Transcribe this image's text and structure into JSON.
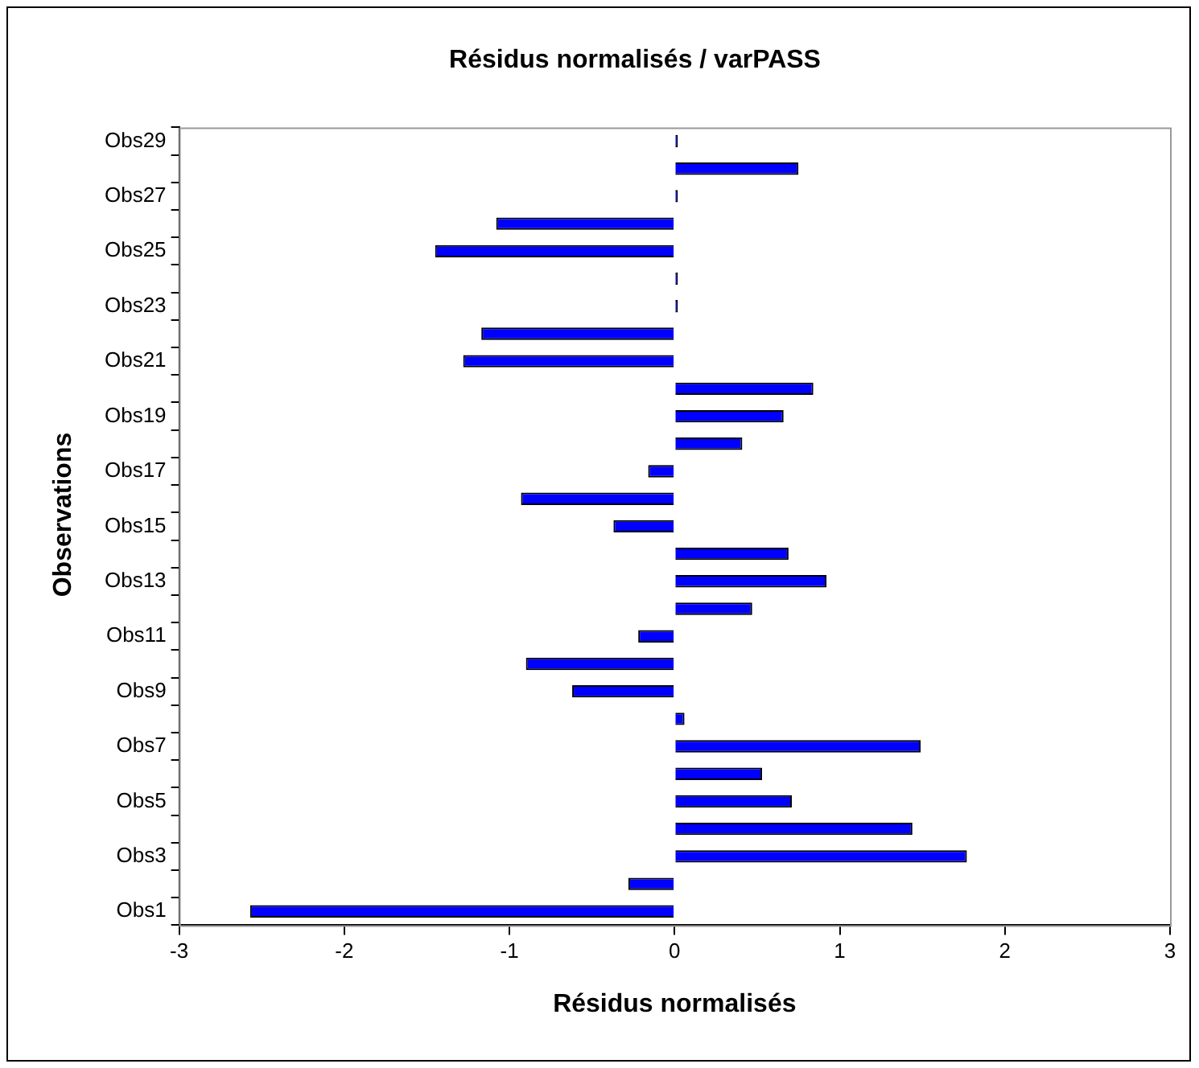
{
  "chart_data": {
    "type": "bar",
    "orientation": "horizontal",
    "title": "Résidus normalisés / varPASS",
    "xlabel": "Résidus normalisés",
    "ylabel": "Observations",
    "categories": [
      "Obs29",
      null,
      "Obs27",
      null,
      "Obs25",
      null,
      "Obs23",
      null,
      "Obs21",
      null,
      "Obs19",
      null,
      "Obs17",
      null,
      "Obs15",
      null,
      "Obs13",
      null,
      "Obs11",
      null,
      "Obs9",
      null,
      "Obs7",
      null,
      "Obs5",
      null,
      "Obs3",
      null,
      "Obs1"
    ],
    "values": [
      0.02,
      0.75,
      0.02,
      -1.08,
      -1.45,
      0.02,
      0.02,
      -1.17,
      -1.28,
      0.84,
      0.66,
      0.41,
      -0.16,
      -0.93,
      -0.37,
      0.69,
      0.92,
      0.47,
      -0.22,
      -0.9,
      -0.62,
      0.06,
      1.49,
      0.53,
      0.71,
      1.44,
      1.77,
      -0.28,
      -2.57
    ],
    "color": "#0000ff",
    "xlim": [
      -3,
      3
    ],
    "xticks": [
      -3,
      -2,
      -1,
      0,
      1,
      2,
      3
    ],
    "grid": false,
    "legend": false
  }
}
